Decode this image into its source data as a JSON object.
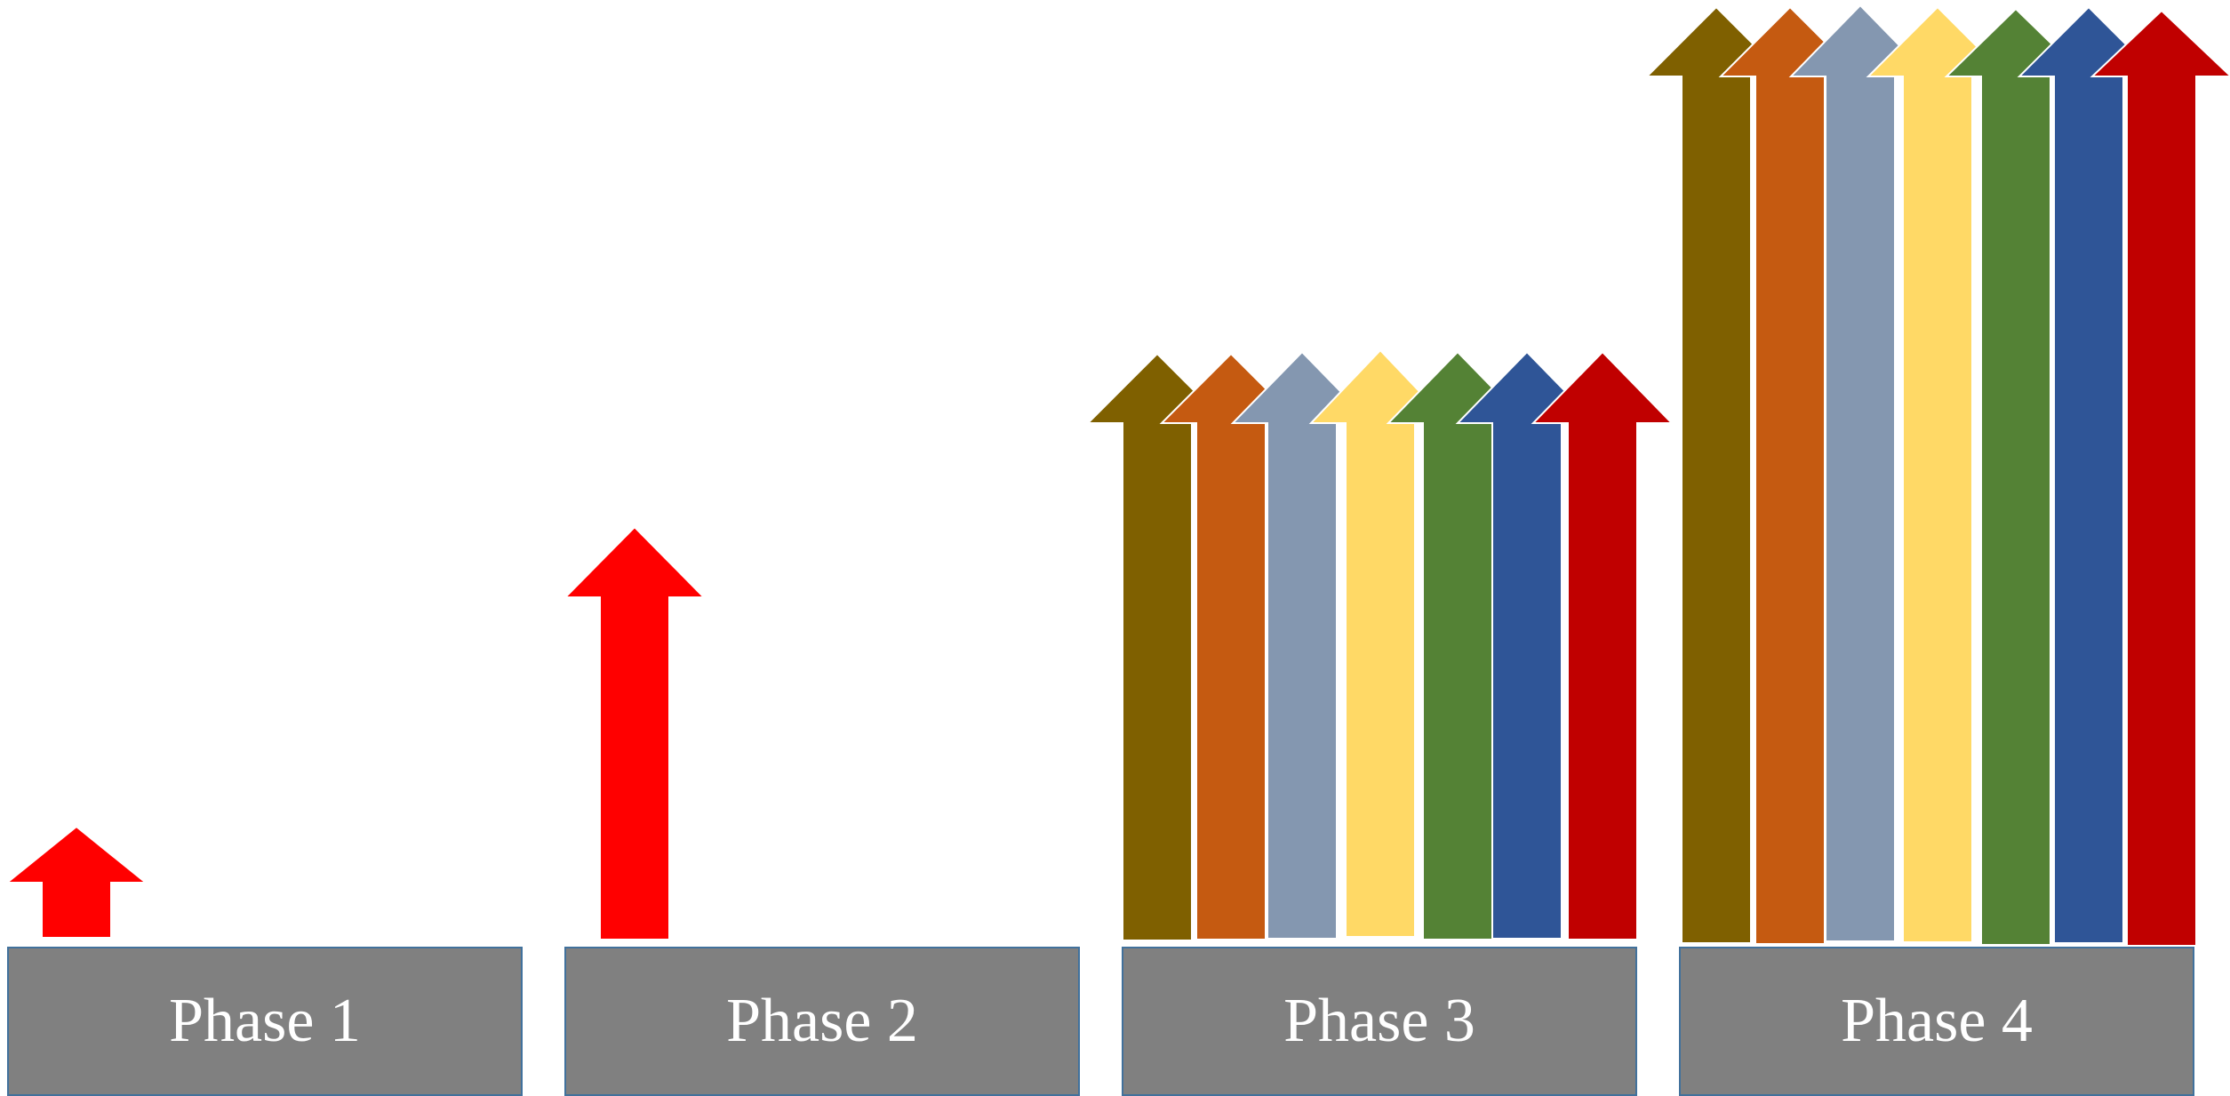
{
  "phases": [
    {
      "label": "Phase 1",
      "arrow_colors": [
        "#ff0000"
      ]
    },
    {
      "label": "Phase 2",
      "arrow_colors": [
        "#ff0000"
      ]
    },
    {
      "label": "Phase 3",
      "arrow_colors": [
        "#7f6000",
        "#c55a11",
        "#8497b0",
        "#ffd966",
        "#548235",
        "#2f5597",
        "#c00000"
      ]
    },
    {
      "label": "Phase 4",
      "arrow_colors": [
        "#7f6000",
        "#c55a11",
        "#8497b0",
        "#ffd966",
        "#548235",
        "#2f5597",
        "#c00000"
      ]
    }
  ],
  "colors": {
    "phase_box_fill": "#808080",
    "phase_box_border": "#41719c",
    "phase_label": "#ffffff"
  }
}
